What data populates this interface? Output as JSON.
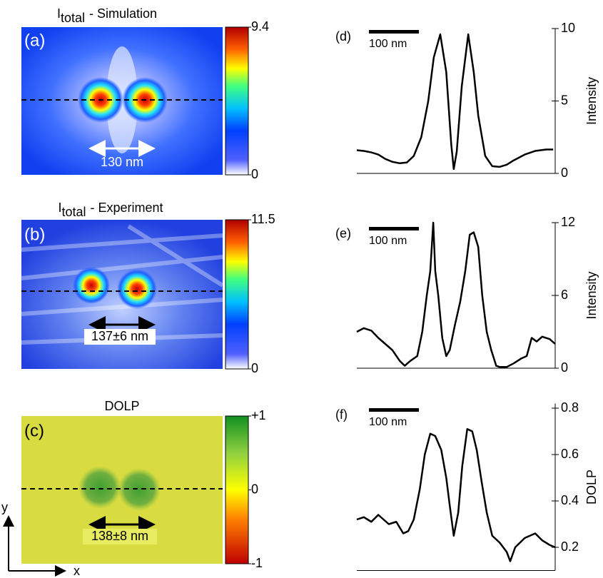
{
  "chart_data": [
    {
      "type": "image",
      "title_prefix": "I",
      "title_subscript": "total",
      "title": "- Simulation",
      "panel": "(a)",
      "annotation": "130 nm",
      "clim": [
        0,
        9.4
      ],
      "cticks": [
        0,
        9.4
      ],
      "colormap": "jet"
    },
    {
      "type": "image",
      "title_prefix": "I",
      "title_subscript": "total",
      "title": "- Experiment",
      "panel": "(b)",
      "annotation": "137±6 nm",
      "clim": [
        0,
        11.5
      ],
      "cticks": [
        0,
        11.5
      ],
      "colormap": "jet"
    },
    {
      "type": "image",
      "title": "DOLP",
      "panel": "(c)",
      "annotation": "138±8 nm",
      "clim": [
        -1,
        1
      ],
      "cticks": [
        -1,
        0,
        {
          "value": 1,
          "label": "+1"
        }
      ],
      "colormap": "red-yellow-green",
      "xlabel": "x",
      "ylabel": "y"
    },
    {
      "type": "line",
      "panel": "(d)",
      "ylabel": "Intensity",
      "scalebar": {
        "label": "100 nm",
        "length": 100
      },
      "color": "#000000",
      "x": [
        0,
        14,
        29,
        43,
        57,
        71,
        86,
        100,
        114,
        129,
        143,
        154,
        167,
        179,
        189,
        194,
        200,
        210,
        223,
        234,
        243,
        257,
        271,
        286,
        300,
        314,
        336,
        357,
        379,
        393
      ],
      "values": [
        1.6,
        1.55,
        1.45,
        1.3,
        1.0,
        0.8,
        0.7,
        0.75,
        1.2,
        2.5,
        5,
        8,
        9.6,
        7,
        2,
        0.3,
        1.5,
        6,
        9.6,
        7,
        4,
        1.2,
        0.5,
        0.45,
        0.6,
        0.9,
        1.3,
        1.55,
        1.65,
        1.65
      ],
      "xlim": [
        0,
        397
      ],
      "ylim": [
        0,
        10
      ],
      "yticks": [
        0,
        5,
        10
      ]
    },
    {
      "type": "line",
      "panel": "(e)",
      "ylabel": "Intensity",
      "scalebar": {
        "label": "100 nm",
        "length": 100
      },
      "color": "#000000",
      "x": [
        0,
        14,
        29,
        43,
        57,
        71,
        86,
        96,
        107,
        121,
        131,
        140,
        147,
        153,
        157,
        163,
        171,
        179,
        186,
        196,
        207,
        217,
        226,
        234,
        243,
        251,
        260,
        269,
        279,
        286,
        300,
        314,
        329,
        340,
        350,
        360,
        371,
        386,
        397
      ],
      "values": [
        3.0,
        3.3,
        3.1,
        2.5,
        2.0,
        1.5,
        0.6,
        0.2,
        0.6,
        1.0,
        3,
        6,
        8,
        12,
        8,
        6,
        2.5,
        1.0,
        1.5,
        3.5,
        5.5,
        8,
        11.0,
        11.2,
        10,
        6,
        3,
        1.5,
        0.2,
        0.1,
        0.1,
        0.4,
        0.8,
        1.0,
        2.5,
        2.2,
        2.6,
        2.4,
        2.0
      ],
      "xlim": [
        0,
        397
      ],
      "ylim": [
        0,
        12
      ],
      "yticks": [
        0,
        6,
        12
      ]
    },
    {
      "type": "line",
      "panel": "(f)",
      "ylabel": "DOLP",
      "scalebar": {
        "label": "100 nm",
        "length": 100
      },
      "color": "#000000",
      "x": [
        0,
        14,
        29,
        43,
        64,
        79,
        93,
        103,
        114,
        126,
        136,
        147,
        157,
        169,
        179,
        186,
        194,
        203,
        211,
        221,
        231,
        240,
        250,
        260,
        271,
        286,
        300,
        307,
        317,
        336,
        357,
        371,
        386,
        397
      ],
      "values": [
        0.32,
        0.33,
        0.31,
        0.34,
        0.3,
        0.31,
        0.26,
        0.27,
        0.32,
        0.45,
        0.6,
        0.69,
        0.68,
        0.62,
        0.5,
        0.38,
        0.25,
        0.35,
        0.55,
        0.71,
        0.7,
        0.62,
        0.48,
        0.35,
        0.25,
        0.22,
        0.18,
        0.14,
        0.2,
        0.24,
        0.26,
        0.23,
        0.21,
        0.2
      ],
      "xlim": [
        0,
        397
      ],
      "ylim": [
        0.1,
        0.82
      ],
      "yticks": [
        0.2,
        0.4,
        0.6,
        0.8
      ]
    }
  ]
}
